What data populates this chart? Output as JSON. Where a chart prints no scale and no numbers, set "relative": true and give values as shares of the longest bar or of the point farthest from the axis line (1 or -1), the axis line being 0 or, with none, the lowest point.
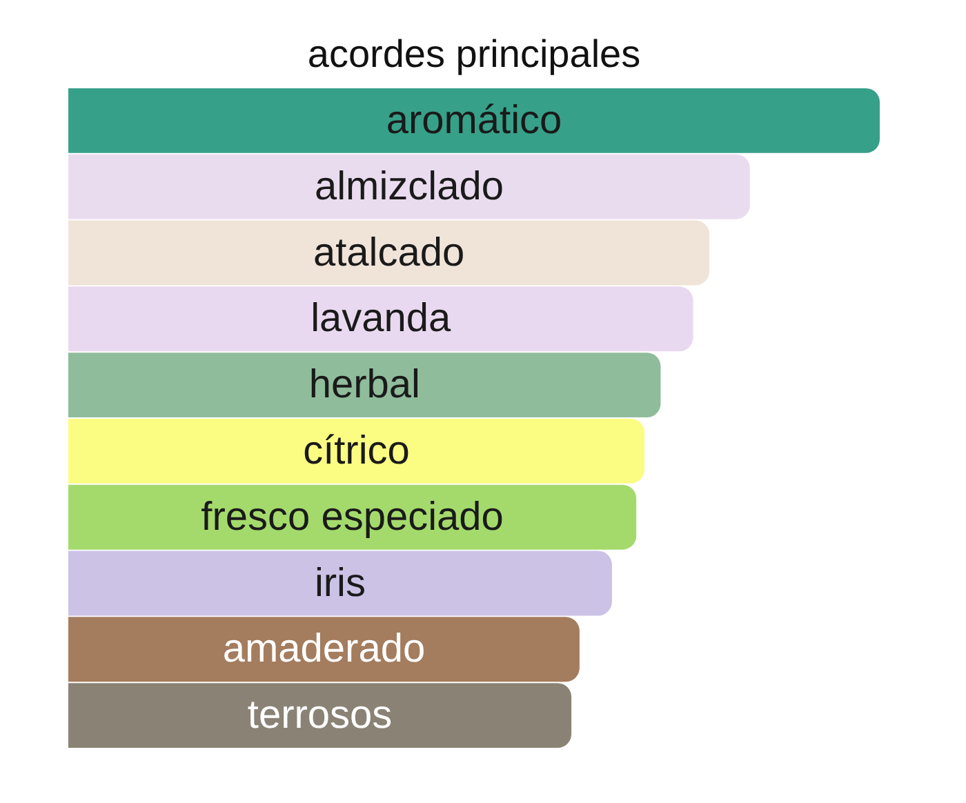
{
  "chart_data": {
    "type": "bar",
    "orientation": "horizontal",
    "relative": true,
    "title": "acordes principales",
    "categories": [
      "aromático",
      "almizclado",
      "atalcado",
      "lavanda",
      "herbal",
      "cítrico",
      "fresco especiado",
      "iris",
      "amaderado",
      "terrosos"
    ],
    "values": [
      1,
      0.84,
      0.79,
      0.77,
      0.73,
      0.71,
      0.7,
      0.67,
      0.63,
      0.62
    ],
    "colors": [
      "#37a089",
      "#eadcef",
      "#f0e3d8",
      "#e9d9f0",
      "#8fbc9b",
      "#fbfd82",
      "#a4da6c",
      "#cbc2e6",
      "#a47c5e",
      "#8a8375"
    ]
  }
}
